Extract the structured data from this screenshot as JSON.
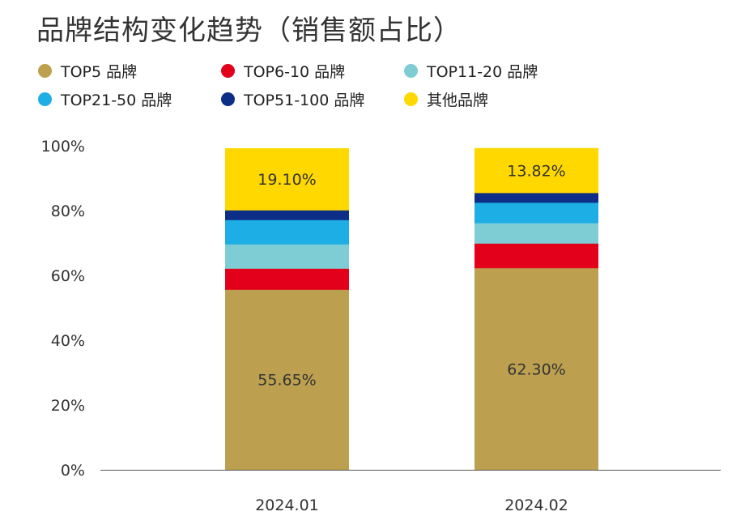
{
  "chart_data": {
    "type": "bar",
    "stacked": true,
    "title": "品牌结构变化趋势（销售额占比）",
    "xlabel": "",
    "ylabel": "",
    "ylim": [
      0,
      100
    ],
    "y_ticks": [
      "0%",
      "20%",
      "40%",
      "60%",
      "80%",
      "100%"
    ],
    "y_tick_values": [
      0,
      20,
      40,
      60,
      80,
      100
    ],
    "categories": [
      "2024.01",
      "2024.02"
    ],
    "series": [
      {
        "name": "TOP5 品牌",
        "color": "#BDA04F",
        "values": [
          55.65,
          62.3
        ],
        "labels": [
          "55.65%",
          "62.30%"
        ]
      },
      {
        "name": "TOP6-10 品牌",
        "color": "#E2001A",
        "values": [
          6.5,
          7.6
        ],
        "labels": [
          "",
          ""
        ]
      },
      {
        "name": "TOP11-20 品牌",
        "color": "#7FCDD4",
        "values": [
          7.5,
          6.3
        ],
        "labels": [
          "",
          ""
        ]
      },
      {
        "name": "TOP21-50 品牌",
        "color": "#1CAEE4",
        "values": [
          7.5,
          6.3
        ],
        "labels": [
          "",
          ""
        ]
      },
      {
        "name": "TOP51-100 品牌",
        "color": "#0D2E86",
        "values": [
          3.0,
          3.0
        ],
        "labels": [
          "",
          ""
        ]
      },
      {
        "name": "其他品牌",
        "color": "#FFD800",
        "values": [
          19.1,
          13.82
        ],
        "labels": [
          "19.10%",
          "13.82%"
        ]
      }
    ],
    "legend_position": "top-left",
    "grid": false
  }
}
